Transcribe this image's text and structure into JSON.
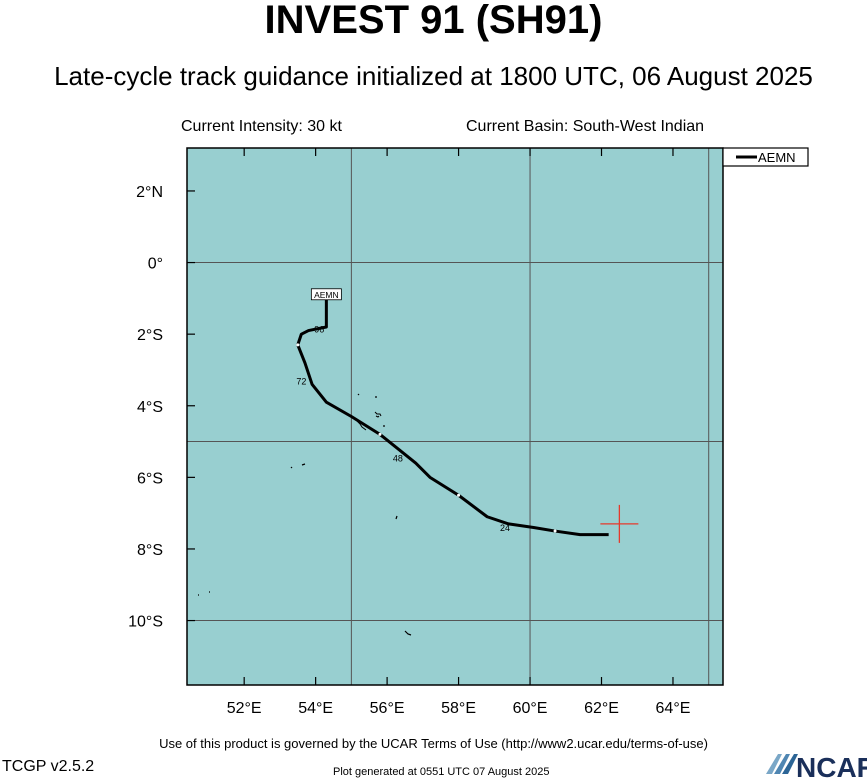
{
  "header": {
    "title": "INVEST 91 (SH91)",
    "subtitle": "Late-cycle track guidance initialized at 1800 UTC, 06 August 2025",
    "intensity": "Current Intensity: 30 kt",
    "basin": "Current Basin: South-West Indian"
  },
  "footer": {
    "terms": "Use of this product is governed by the UCAR Terms of Use (http://www2.ucar.edu/terms-of-use)",
    "version": "TCGP v2.5.2",
    "generated": "Plot generated at 0551 UTC   07 August 2025",
    "logo_text": "NCAR"
  },
  "colors": {
    "ocean": "#98cfd0",
    "track": "#000000",
    "marker": "#e53a2c",
    "grid": "#555555"
  },
  "chart_data": {
    "type": "line",
    "title": "INVEST 91 (SH91)",
    "xlabel": "",
    "ylabel": "",
    "xlim": [
      50.4,
      65.4
    ],
    "ylim": [
      -11.8,
      3.2
    ],
    "x_ticks": [
      52,
      54,
      56,
      58,
      60,
      62,
      64
    ],
    "x_tick_labels": [
      "52°E",
      "54°E",
      "56°E",
      "58°E",
      "60°E",
      "62°E",
      "64°E"
    ],
    "y_ticks": [
      2,
      0,
      -2,
      -4,
      -6,
      -8,
      -10
    ],
    "y_tick_labels": [
      "2°N",
      "0°",
      "2°S",
      "4°S",
      "6°S",
      "8°S",
      "10°S"
    ],
    "grid_lon": [
      55,
      60,
      65
    ],
    "grid_lat": [
      0,
      -5,
      -10
    ],
    "legend": {
      "position": "top-right",
      "entries": [
        "AEMN"
      ]
    },
    "current_position": {
      "lon": 62.5,
      "lat": -7.3
    },
    "series": [
      {
        "name": "AEMN",
        "lon": [
          62.2,
          61.4,
          60.7,
          60.1,
          59.4,
          58.8,
          58.0,
          57.2,
          56.8,
          56.3,
          55.8,
          55.0,
          54.3,
          53.9,
          53.7,
          53.5,
          53.6,
          53.8,
          54.3,
          54.3
        ],
        "lat": [
          -7.6,
          -7.6,
          -7.5,
          -7.4,
          -7.3,
          -7.1,
          -6.5,
          -6.0,
          -5.6,
          -5.2,
          -4.8,
          -4.3,
          -3.9,
          -3.4,
          -2.8,
          -2.3,
          -2.0,
          -1.9,
          -1.8,
          -0.9
        ],
        "forecast_hour_labels": [
          {
            "text": "24",
            "lon": 59.3,
            "lat": -7.5
          },
          {
            "text": "48",
            "lon": 56.3,
            "lat": -5.55
          },
          {
            "text": "72",
            "lon": 53.6,
            "lat": -3.4
          },
          {
            "text": "96",
            "lon": 54.1,
            "lat": -1.95
          }
        ],
        "end_label": "AEMN"
      }
    ]
  }
}
